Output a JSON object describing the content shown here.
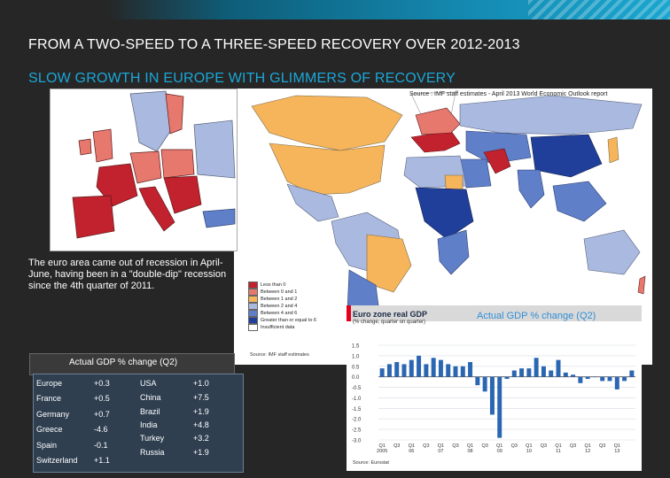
{
  "header": {
    "title": "FROM A TWO-SPEED TO A THREE-SPEED RECOVERY OVER 2012-2013",
    "subtitle": "SLOW GROWTH IN EUROPE WITH GLIMMERS OF RECOVERY"
  },
  "map": {
    "source": "Source : IMF staff estimates - April 2013 World Economic Outlook report",
    "legend": [
      {
        "label": "Less than 0",
        "color": "#c2212e"
      },
      {
        "label": "Between 0 and 1",
        "color": "#e7786d"
      },
      {
        "label": "Between 1 and 2",
        "color": "#f6b55b"
      },
      {
        "label": "Between 2 and 4",
        "color": "#aab9df"
      },
      {
        "label": "Between 4 and 6",
        "color": "#5f7fc9"
      },
      {
        "label": "Greater than or equal to 6",
        "color": "#1f3f9a"
      },
      {
        "label": "Insufficient data",
        "color": "#ffffff"
      }
    ],
    "legend_source": "Source: IMF staff estimates"
  },
  "note": "The euro area came out of recession in April-June, having been in a \"double-dip\" recession since the 4th quarter of 2011.",
  "gdp_table": {
    "title": "Actual GDP % change (Q2)",
    "left": [
      {
        "name": "Europe",
        "value": "+0.3"
      },
      {
        "name": "France",
        "value": "+0.5"
      },
      {
        "name": "Germany",
        "value": "+0.7"
      },
      {
        "name": "Greece",
        "value": "-4.6"
      },
      {
        "name": "Spain",
        "value": "-0.1"
      },
      {
        "name": "Switzerland",
        "value": "+1.1"
      }
    ],
    "right": [
      {
        "name": "USA",
        "value": "+1.0"
      },
      {
        "name": "China",
        "value": "+7.5"
      },
      {
        "name": "Brazil",
        "value": "+1.9"
      },
      {
        "name": "India",
        "value": "+4.8"
      },
      {
        "name": "Turkey",
        "value": "+3.2"
      },
      {
        "name": "Russia",
        "value": "+1.9"
      }
    ]
  },
  "chart_caption": "Actual GDP % change (Q2)",
  "chart_data": {
    "type": "bar",
    "title": "Euro zone real GDP",
    "subtitle": "(% change, quarter on quarter)",
    "source": "Source: Eurostat",
    "ylim": [
      -3.0,
      1.5
    ],
    "yticks": [
      "1.5",
      "1.0",
      "0.5",
      "0.0",
      "-0.5",
      "-1.0",
      "-1.5",
      "-2.0",
      "-2.5",
      "-3.0"
    ],
    "xticks": [
      {
        "q": "Q1",
        "y": "2005"
      },
      {
        "q": "Q3",
        "y": ""
      },
      {
        "q": "Q1",
        "y": "06"
      },
      {
        "q": "Q3",
        "y": ""
      },
      {
        "q": "Q1",
        "y": "07"
      },
      {
        "q": "Q3",
        "y": ""
      },
      {
        "q": "Q1",
        "y": "08"
      },
      {
        "q": "Q3",
        "y": ""
      },
      {
        "q": "Q1",
        "y": "09"
      },
      {
        "q": "Q3",
        "y": ""
      },
      {
        "q": "Q1",
        "y": "10"
      },
      {
        "q": "Q3",
        "y": ""
      },
      {
        "q": "Q1",
        "y": "11"
      },
      {
        "q": "Q3",
        "y": ""
      },
      {
        "q": "Q1",
        "y": "12"
      },
      {
        "q": "Q3",
        "y": ""
      },
      {
        "q": "Q1",
        "y": "13"
      }
    ],
    "values": [
      0.4,
      0.6,
      0.7,
      0.6,
      0.8,
      1.0,
      0.6,
      0.9,
      0.8,
      0.6,
      0.5,
      0.5,
      0.7,
      -0.4,
      -0.7,
      -1.8,
      -2.9,
      -0.1,
      0.3,
      0.4,
      0.4,
      0.9,
      0.5,
      0.3,
      0.8,
      0.2,
      0.1,
      -0.3,
      -0.1,
      0.0,
      -0.2,
      -0.2,
      -0.6,
      -0.2,
      0.3
    ]
  }
}
